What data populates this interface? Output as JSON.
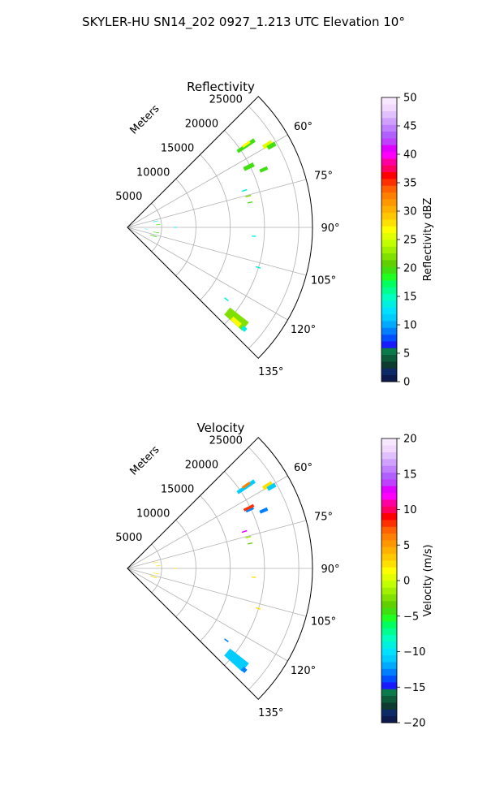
{
  "figure": {
    "title": "SKYLER-HU  SN14_202  0927_1.213 UTC Elevation 10°"
  },
  "chart_data": [
    {
      "type": "heatmap",
      "subtype": "polar-sector (PPI)",
      "title": "Reflectivity",
      "range_label": "Meters",
      "range_ticks": [
        "5000",
        "10000",
        "15000",
        "20000",
        "25000"
      ],
      "range_max": 27000,
      "azimuth_range": [
        45,
        135
      ],
      "azimuth_tick_labels": [
        "60°",
        "75°",
        "90°",
        "105°",
        "120°",
        "135°"
      ],
      "azimuth_ticks": [
        60,
        75,
        90,
        105,
        120,
        135
      ],
      "grid": true,
      "colorbar": {
        "label": "Reflectivity dBZ",
        "min": 0,
        "max": 50,
        "ticks": [
          "0",
          "5",
          "10",
          "15",
          "20",
          "25",
          "30",
          "35",
          "40",
          "45",
          "50"
        ],
        "tick_values": [
          0,
          5,
          10,
          15,
          20,
          25,
          30,
          35,
          40,
          45,
          50
        ],
        "colors": [
          "#0c1a4d",
          "#0d2a66",
          "#0e3b2f",
          "#0d5a3a",
          "#0a7a4a",
          "#1a1aff",
          "#0050ff",
          "#0080ff",
          "#00aaff",
          "#00ccff",
          "#00e0ff",
          "#00f0e0",
          "#00ffc0",
          "#00ff90",
          "#00ff60",
          "#20ff20",
          "#40e010",
          "#60d000",
          "#80e000",
          "#a0f000",
          "#c0ff00",
          "#e0ff00",
          "#ffff00",
          "#ffe000",
          "#ffc800",
          "#ffb000",
          "#ff9800",
          "#ff8000",
          "#ff6000",
          "#ff3000",
          "#ff0000",
          "#ff0060",
          "#ff00a0",
          "#ff00ff",
          "#e000ff",
          "#c040ff",
          "#b060ff",
          "#c080ff",
          "#d0a0ff",
          "#e0c0ff",
          "#f0d8ff",
          "#f8e8ff"
        ]
      },
      "echoes": [
        {
          "az": 55.5,
          "r": [
            19500,
            22500
          ],
          "v": 20,
          "w": 1.5
        },
        {
          "az": 55.0,
          "r": [
            20500,
            21800
          ],
          "v": 27,
          "w": 1.0
        },
        {
          "az": 59.5,
          "r": [
            23000,
            24500
          ],
          "v": 25,
          "w": 1.6
        },
        {
          "az": 60.5,
          "r": [
            23500,
            24800
          ],
          "v": 20,
          "w": 1.5
        },
        {
          "az": 63.5,
          "r": [
            19000,
            20600
          ],
          "v": 20,
          "w": 1.8
        },
        {
          "az": 67.0,
          "r": [
            21000,
            22200
          ],
          "v": 20,
          "w": 1.3
        },
        {
          "az": 72.5,
          "r": [
            17500,
            18300
          ],
          "v": 14,
          "w": 0.6
        },
        {
          "az": 75.5,
          "r": [
            17800,
            18600
          ],
          "v": 22,
          "w": 0.6
        },
        {
          "az": 78.5,
          "r": [
            17900,
            18600
          ],
          "v": 20,
          "w": 0.5
        },
        {
          "az": 94.0,
          "r": [
            18200,
            18800
          ],
          "v": 14,
          "w": 0.5
        },
        {
          "az": 107.0,
          "r": [
            19600,
            20300
          ],
          "v": 14,
          "w": 0.5
        },
        {
          "az": 126.0,
          "r": [
            17500,
            18200
          ],
          "v": 14,
          "w": 0.6
        },
        {
          "az": 130.0,
          "r": [
            19000,
            22500
          ],
          "v": 22,
          "w": 4.0
        },
        {
          "az": 131.0,
          "r": [
            20200,
            21800
          ],
          "v": 27,
          "w": 1.8
        },
        {
          "az": 131.0,
          "r": [
            22200,
            22900
          ],
          "v": 14,
          "w": 1.6
        },
        {
          "az": 78.0,
          "r": [
            3800,
            4600
          ],
          "v": 14,
          "w": 1.0
        },
        {
          "az": 85.0,
          "r": [
            4200,
            4800
          ],
          "v": 20,
          "w": 1.0
        },
        {
          "az": 95.0,
          "r": [
            2500,
            3000
          ],
          "v": 14,
          "w": 1.2
        },
        {
          "az": 100.0,
          "r": [
            3800,
            4700
          ],
          "v": 20,
          "w": 1.0
        },
        {
          "az": 108.0,
          "r": [
            3500,
            4500
          ],
          "v": 20,
          "w": 1.5
        },
        {
          "az": 90.0,
          "r": [
            6800,
            7200
          ],
          "v": 14,
          "w": 1.0
        }
      ]
    },
    {
      "type": "heatmap",
      "subtype": "polar-sector (PPI)",
      "title": "Velocity",
      "range_label": "Meters",
      "range_ticks": [
        "5000",
        "10000",
        "15000",
        "20000",
        "25000"
      ],
      "range_max": 27000,
      "azimuth_range": [
        45,
        135
      ],
      "azimuth_tick_labels": [
        "60°",
        "75°",
        "90°",
        "105°",
        "120°",
        "135°"
      ],
      "azimuth_ticks": [
        60,
        75,
        90,
        105,
        120,
        135
      ],
      "grid": true,
      "colorbar": {
        "label": "Velocity (m/s)",
        "min": -20,
        "max": 20,
        "ticks": [
          "−20",
          "−15",
          "−10",
          "−5",
          "0",
          "5",
          "10",
          "15",
          "20"
        ],
        "tick_values": [
          -20,
          -15,
          -10,
          -5,
          0,
          5,
          10,
          15,
          20
        ],
        "colors": [
          "#0c1a4d",
          "#0d2a66",
          "#0e3b2f",
          "#0d5a3a",
          "#0a7a4a",
          "#1a1aff",
          "#0050ff",
          "#0080ff",
          "#00aaff",
          "#00ccff",
          "#00e0ff",
          "#00f0e0",
          "#00ffc0",
          "#00ff90",
          "#00ff60",
          "#20ff20",
          "#40e010",
          "#60d000",
          "#80e000",
          "#a0f000",
          "#c0ff00",
          "#e0ff00",
          "#ffff00",
          "#ffe000",
          "#ffc800",
          "#ffb000",
          "#ff9800",
          "#ff8000",
          "#ff6000",
          "#ff3000",
          "#ff0000",
          "#ff0060",
          "#ff00a0",
          "#ff00ff",
          "#e000ff",
          "#c040ff",
          "#b060ff",
          "#c080ff",
          "#d0a0ff",
          "#e0c0ff",
          "#f0d8ff",
          "#f8e8ff"
        ]
      },
      "echoes": [
        {
          "az": 55.5,
          "r": [
            19500,
            22500
          ],
          "v": -11,
          "w": 1.5
        },
        {
          "az": 55.0,
          "r": [
            20500,
            21800
          ],
          "v": 6,
          "w": 1.0
        },
        {
          "az": 59.5,
          "r": [
            23000,
            24500
          ],
          "v": 2,
          "w": 1.6
        },
        {
          "az": 60.5,
          "r": [
            23500,
            24800
          ],
          "v": -11,
          "w": 1.5
        },
        {
          "az": 63.5,
          "r": [
            19000,
            20600
          ],
          "v": 8,
          "w": 1.2
        },
        {
          "az": 64.5,
          "r": [
            19200,
            20400
          ],
          "v": -13,
          "w": 0.8
        },
        {
          "az": 67.0,
          "r": [
            21000,
            22200
          ],
          "v": -13,
          "w": 1.3
        },
        {
          "az": 72.5,
          "r": [
            17500,
            18300
          ],
          "v": 13,
          "w": 0.6
        },
        {
          "az": 75.5,
          "r": [
            17800,
            18600
          ],
          "v": -1,
          "w": 0.6
        },
        {
          "az": 78.5,
          "r": [
            17900,
            18600
          ],
          "v": -3,
          "w": 0.5
        },
        {
          "az": 94.0,
          "r": [
            18200,
            18800
          ],
          "v": 2,
          "w": 0.5
        },
        {
          "az": 107.0,
          "r": [
            19600,
            20300
          ],
          "v": 2,
          "w": 0.5
        },
        {
          "az": 126.0,
          "r": [
            17500,
            18200
          ],
          "v": -13,
          "w": 0.6
        },
        {
          "az": 130.0,
          "r": [
            19000,
            22500
          ],
          "v": -11,
          "w": 4.0
        },
        {
          "az": 131.0,
          "r": [
            22200,
            22900
          ],
          "v": -13,
          "w": 1.6
        },
        {
          "az": 78.0,
          "r": [
            3800,
            4600
          ],
          "v": 2,
          "w": 1.0
        },
        {
          "az": 85.0,
          "r": [
            4200,
            4800
          ],
          "v": 2,
          "w": 1.0
        },
        {
          "az": 100.0,
          "r": [
            3800,
            4700
          ],
          "v": 2,
          "w": 1.0
        },
        {
          "az": 108.0,
          "r": [
            3500,
            4500
          ],
          "v": 2,
          "w": 1.5
        },
        {
          "az": 90.0,
          "r": [
            6800,
            7200
          ],
          "v": 2,
          "w": 1.0
        }
      ]
    }
  ]
}
